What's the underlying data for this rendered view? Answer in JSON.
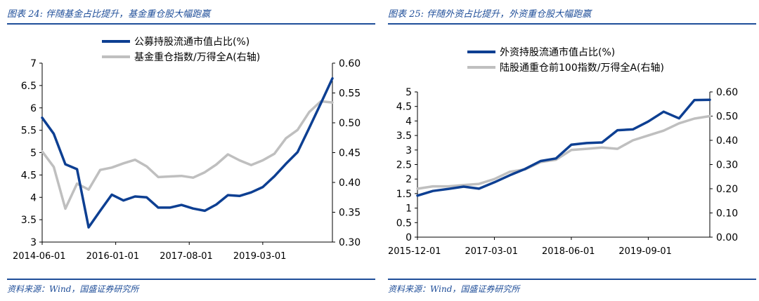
{
  "chart_data": [
    {
      "type": "line",
      "title": "图表 24: 伴随基金占比提升，基金重仓股大幅跑赢",
      "source": "资料来源：Wind，国盛证券研究所",
      "x_labels": [
        "2014-06-01",
        "2016-01-01",
        "2017-08-01",
        "2019-03-01"
      ],
      "ylim_left": [
        3,
        7
      ],
      "yticks_left": [
        "3",
        "3.5",
        "4",
        "4.5",
        "5",
        "5.5",
        "6",
        "6.5",
        "7"
      ],
      "ylim_right": [
        0.3,
        0.6
      ],
      "yticks_right": [
        "0.30",
        "0.35",
        "0.40",
        "0.45",
        "0.50",
        "0.55",
        "0.60"
      ],
      "series": [
        {
          "name": "公募持股流通市值占比(%)",
          "axis": "left",
          "color": "#0d3f92",
          "x": [
            "2014-06",
            "2014-09",
            "2014-12",
            "2015-03",
            "2015-06",
            "2015-09",
            "2015-12",
            "2016-03",
            "2016-06",
            "2016-09",
            "2016-12",
            "2017-03",
            "2017-06",
            "2017-09",
            "2017-12",
            "2018-03",
            "2018-06",
            "2018-09",
            "2018-12",
            "2019-03",
            "2019-06",
            "2019-09",
            "2019-12",
            "2020-03",
            "2020-06",
            "2020-09"
          ],
          "values": [
            5.78,
            5.42,
            4.74,
            4.63,
            3.33,
            3.7,
            4.06,
            3.93,
            4.02,
            4.0,
            3.77,
            3.77,
            3.83,
            3.75,
            3.7,
            3.84,
            4.05,
            4.03,
            4.11,
            4.23,
            4.47,
            4.75,
            5.01,
            5.55,
            6.1,
            6.66
          ]
        },
        {
          "name": "基金重仓指数/万得全A(右轴)",
          "axis": "right",
          "color": "#bfbfbf",
          "x": [
            "2014-06",
            "2014-09",
            "2014-12",
            "2015-03",
            "2015-06",
            "2015-09",
            "2015-12",
            "2016-03",
            "2016-06",
            "2016-09",
            "2016-12",
            "2017-03",
            "2017-06",
            "2017-09",
            "2017-12",
            "2018-03",
            "2018-06",
            "2018-09",
            "2018-12",
            "2019-03",
            "2019-06",
            "2019-09",
            "2019-12",
            "2020-03",
            "2020-06",
            "2020-09"
          ],
          "values": [
            0.452,
            0.426,
            0.356,
            0.398,
            0.388,
            0.421,
            0.425,
            0.432,
            0.438,
            0.427,
            0.409,
            0.41,
            0.411,
            0.408,
            0.417,
            0.43,
            0.447,
            0.437,
            0.429,
            0.437,
            0.448,
            0.474,
            0.488,
            0.518,
            0.536,
            0.534
          ]
        }
      ]
    },
    {
      "type": "line",
      "title": "图表 25: 伴随外资占比提升，外资重仓股大幅跑赢",
      "source": "资料来源：Wind，国盛证券研究所",
      "x_labels": [
        "2015-12-01",
        "2017-03-01",
        "2018-06-01",
        "2019-09-01"
      ],
      "ylim_left": [
        0,
        5
      ],
      "yticks_left": [
        "0",
        "0.5",
        "1",
        "1.5",
        "2",
        "2.5",
        "3",
        "3.5",
        "4",
        "4.5",
        "5"
      ],
      "ylim_right": [
        0.0,
        0.6
      ],
      "yticks_right": [
        "0.00",
        "0.10",
        "0.20",
        "0.30",
        "0.40",
        "0.50",
        "0.60"
      ],
      "series": [
        {
          "name": "外资持股流通市值占比(%)",
          "axis": "left",
          "color": "#0d3f92",
          "x": [
            "2015-12",
            "2016-03",
            "2016-06",
            "2016-09",
            "2016-12",
            "2017-03",
            "2017-06",
            "2017-09",
            "2017-12",
            "2018-03",
            "2018-06",
            "2018-09",
            "2018-12",
            "2019-03",
            "2019-06",
            "2019-09",
            "2019-12",
            "2020-03",
            "2020-06",
            "2020-09"
          ],
          "values": [
            1.43,
            1.59,
            1.66,
            1.74,
            1.67,
            1.89,
            2.13,
            2.35,
            2.62,
            2.71,
            3.18,
            3.24,
            3.26,
            3.68,
            3.71,
            3.98,
            4.32,
            4.09,
            4.72,
            4.73
          ]
        },
        {
          "name": "陆股通重仓前100指数/万得全A(右轴)",
          "axis": "right",
          "color": "#bfbfbf",
          "x": [
            "2015-12",
            "2016-03",
            "2016-06",
            "2016-09",
            "2016-12",
            "2017-03",
            "2017-06",
            "2017-09",
            "2017-12",
            "2018-03",
            "2018-06",
            "2018-09",
            "2018-12",
            "2019-03",
            "2019-06",
            "2019-09",
            "2019-12",
            "2020-03",
            "2020-06",
            "2020-09"
          ],
          "values": [
            0.2,
            0.21,
            0.21,
            0.215,
            0.22,
            0.24,
            0.27,
            0.28,
            0.31,
            0.32,
            0.36,
            0.365,
            0.37,
            0.365,
            0.4,
            0.42,
            0.44,
            0.47,
            0.49,
            0.5
          ]
        }
      ]
    }
  ]
}
